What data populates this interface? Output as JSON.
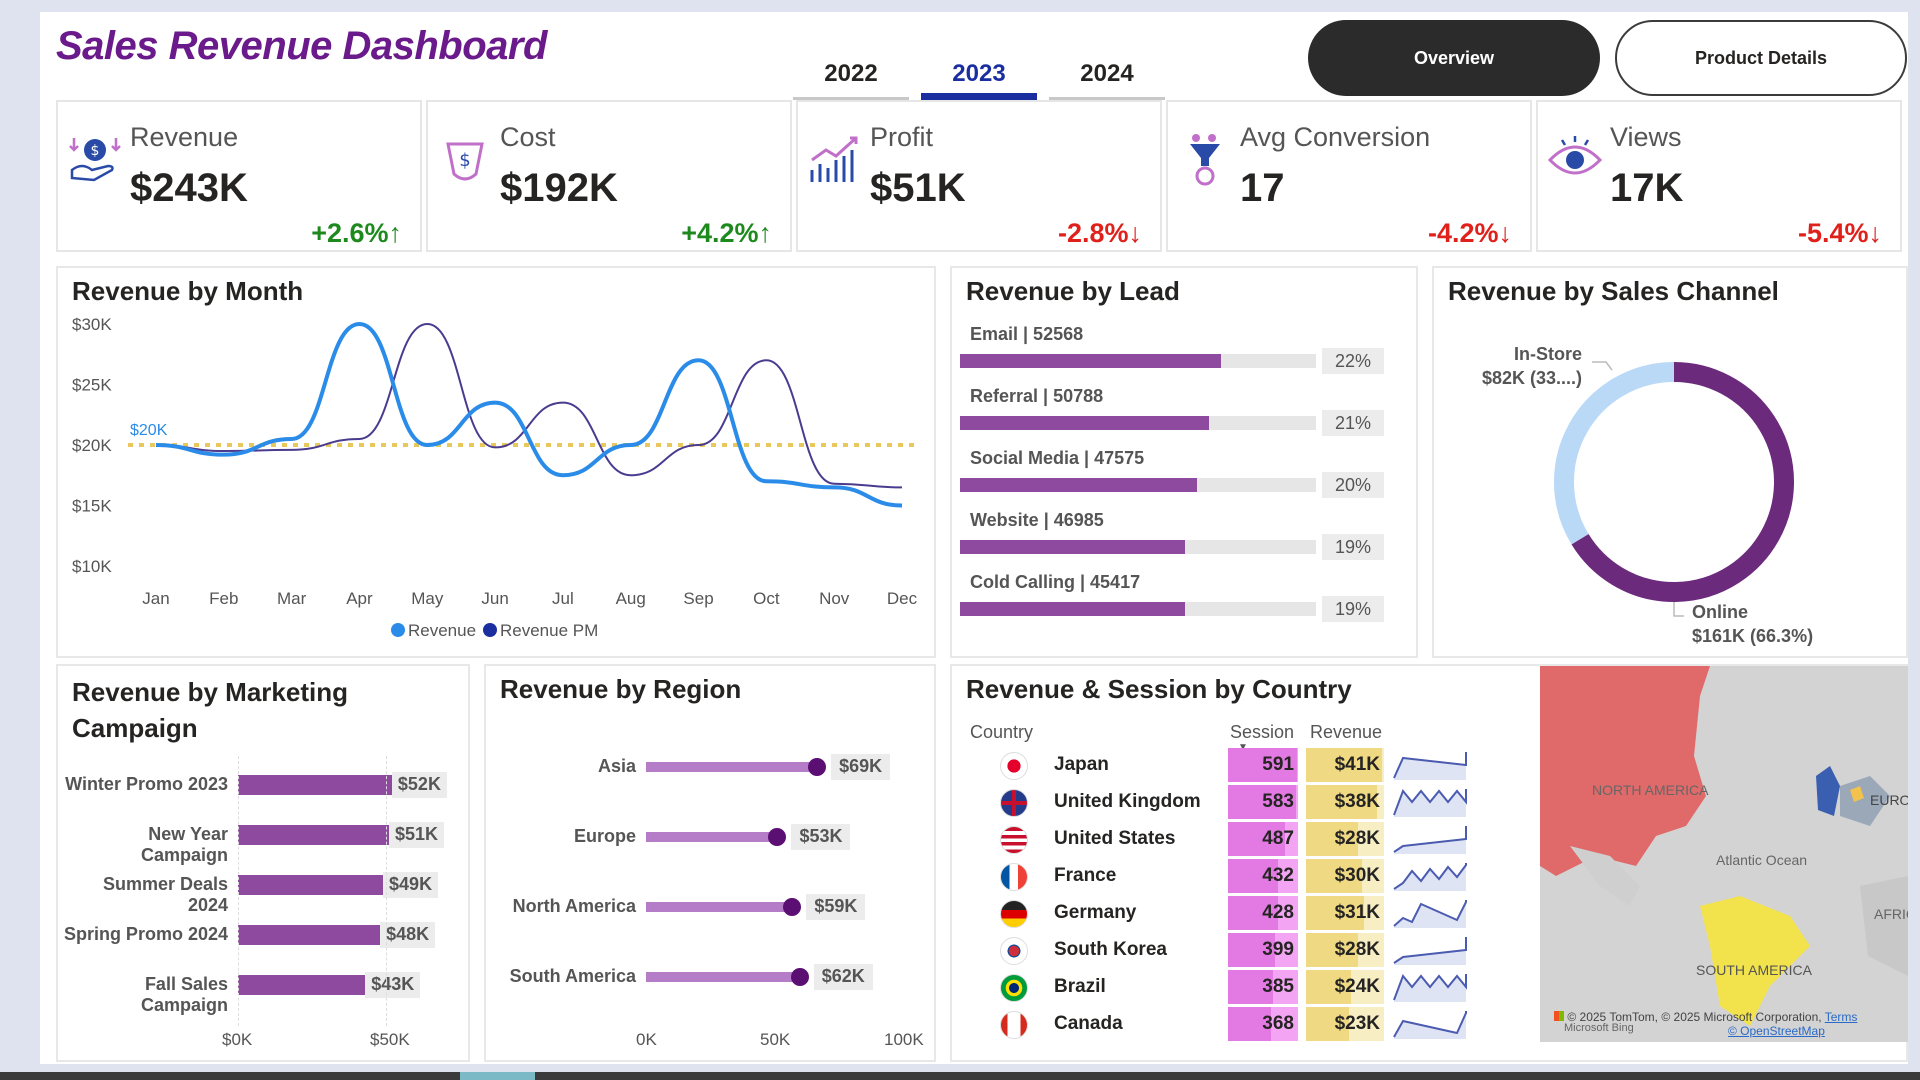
{
  "title": "Sales Revenue Dashboard",
  "year_tabs": [
    {
      "label": "2022",
      "active": false
    },
    {
      "label": "2023",
      "active": true
    },
    {
      "label": "2024",
      "active": false
    }
  ],
  "nav": {
    "overview": "Overview",
    "product_details": "Product Details"
  },
  "kpis": [
    {
      "label": "Revenue",
      "value": "$243K",
      "change": "+2.6%↑",
      "trend": "up",
      "icon": "revenue-icon"
    },
    {
      "label": "Cost",
      "value": "$192K",
      "change": "+4.2%↑",
      "trend": "up",
      "icon": "cost-icon"
    },
    {
      "label": "Profit",
      "value": "$51K",
      "change": "-2.8%↓",
      "trend": "down",
      "icon": "profit-icon"
    },
    {
      "label": "Avg Conversion",
      "value": "17",
      "change": "-4.2%↓",
      "trend": "down",
      "icon": "conversion-icon"
    },
    {
      "label": "Views",
      "value": "17K",
      "change": "-5.4%↓",
      "trend": "down",
      "icon": "views-icon"
    }
  ],
  "colors": {
    "revenue": "#2a8ce8",
    "revenue_pm": "#4b3b8f",
    "target": "#e8c85a",
    "bar": "#8d4a9e",
    "donut_online": "#6b2a7b",
    "donut_instore": "#b9d9f7"
  },
  "chart_data": [
    {
      "type": "line",
      "title": "Revenue by Month",
      "categories": [
        "Jan",
        "Feb",
        "Mar",
        "Apr",
        "May",
        "Jun",
        "Jul",
        "Aug",
        "Sep",
        "Oct",
        "Nov",
        "Dec"
      ],
      "series": [
        {
          "name": "Revenue",
          "values": [
            20000,
            19200,
            20500,
            30000,
            20000,
            23500,
            17500,
            20000,
            27000,
            17000,
            16500,
            15000
          ]
        },
        {
          "name": "Revenue PM",
          "values": [
            20000,
            19500,
            19600,
            20500,
            30000,
            19800,
            23500,
            17500,
            20000,
            27000,
            16800,
            16500
          ]
        }
      ],
      "reference_line": {
        "label": "$20K",
        "value": 20000
      },
      "y_ticks": [
        "$30K",
        "$25K",
        "$20K",
        "$15K",
        "$10K"
      ],
      "ylim": [
        10000,
        30000
      ],
      "legend": "bottom"
    },
    {
      "type": "bar",
      "title": "Revenue by Lead",
      "categories": [
        "Email | 52568",
        "Referral | 50788",
        "Social Media | 47575",
        "Website | 46985",
        "Cold Calling | 45417"
      ],
      "values": [
        52568,
        50788,
        47575,
        46985,
        45417
      ],
      "percent_labels": [
        "22%",
        "21%",
        "20%",
        "19%",
        "19%"
      ],
      "percent": [
        22,
        21,
        20,
        19,
        19
      ]
    },
    {
      "type": "pie",
      "title": "Revenue by Sales Channel",
      "slices": [
        {
          "name": "In-Store",
          "label": "$82K (33....)",
          "percent": 33.7
        },
        {
          "name": "Online",
          "label": "$161K (66.3%)",
          "percent": 66.3
        }
      ]
    },
    {
      "type": "bar",
      "title": "Revenue by Marketing Campaign",
      "categories": [
        "Winter Promo 2023",
        "New Year Campaign",
        "Summer Deals 2024",
        "Spring Promo 2024",
        "Fall Sales Campaign"
      ],
      "values": [
        52,
        51,
        49,
        48,
        43
      ],
      "value_labels": [
        "$52K",
        "$51K",
        "$49K",
        "$48K",
        "$43K"
      ],
      "x_ticks": [
        "$0K",
        "$50K"
      ],
      "xlim": [
        0,
        60
      ]
    },
    {
      "type": "scatter",
      "title": "Revenue by Region",
      "categories": [
        "Asia",
        "Europe",
        "North America",
        "South America"
      ],
      "values": [
        69,
        53,
        59,
        62
      ],
      "value_labels": [
        "$69K",
        "$53K",
        "$59K",
        "$62K"
      ],
      "x_ticks": [
        "0K",
        "50K",
        "100K"
      ],
      "xlim": [
        0,
        100
      ]
    }
  ],
  "country_table": {
    "title": "Revenue & Session by Country",
    "headers": {
      "country": "Country",
      "session": "Session",
      "revenue": "Revenue"
    },
    "rows": [
      {
        "country": "Japan",
        "session": "591",
        "revenue": "$41K",
        "s": 591,
        "r": 41,
        "flag": "japan-flag-icon"
      },
      {
        "country": "United Kingdom",
        "session": "583",
        "revenue": "$38K",
        "s": 583,
        "r": 38,
        "flag": "uk-flag-icon"
      },
      {
        "country": "United States",
        "session": "487",
        "revenue": "$28K",
        "s": 487,
        "r": 28,
        "flag": "us-flag-icon"
      },
      {
        "country": "France",
        "session": "432",
        "revenue": "$30K",
        "s": 432,
        "r": 30,
        "flag": "france-flag-icon"
      },
      {
        "country": "Germany",
        "session": "428",
        "revenue": "$31K",
        "s": 428,
        "r": 31,
        "flag": "germany-flag-icon"
      },
      {
        "country": "South Korea",
        "session": "399",
        "revenue": "$28K",
        "s": 399,
        "r": 28,
        "flag": "south-korea-flag-icon"
      },
      {
        "country": "Brazil",
        "session": "385",
        "revenue": "$24K",
        "s": 385,
        "r": 24,
        "flag": "brazil-flag-icon"
      },
      {
        "country": "Canada",
        "session": "368",
        "revenue": "$23K",
        "s": 368,
        "r": 23,
        "flag": "canada-flag-icon"
      }
    ]
  },
  "map": {
    "labels": [
      "NORTH AMERICA",
      "EUROP",
      "Atlantic Ocean",
      "AFRIC",
      "SOUTH AMERICA"
    ],
    "attribution": "© 2025 TomTom, © 2025 Microsoft Corporation,",
    "terms": "Terms",
    "osm": "© OpenStreetMap",
    "bing": "Microsoft Bing"
  }
}
